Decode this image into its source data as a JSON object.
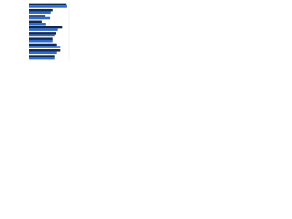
{
  "chart_data": {
    "type": "bar",
    "orientation": "horizontal",
    "categories": [
      null,
      null,
      null,
      null,
      null,
      null,
      null,
      null,
      null,
      null
    ],
    "series": [
      {
        "color": "#14284b",
        "values": [
          61,
          39,
          26,
          21,
          55,
          44,
          39,
          45,
          52,
          42
        ]
      },
      {
        "color": "#2a6ad4",
        "values": [
          62,
          36,
          35,
          27,
          48,
          42,
          39,
          52,
          45,
          42
        ]
      }
    ],
    "xlim": [
      0,
      100
    ],
    "grid": true
  }
}
